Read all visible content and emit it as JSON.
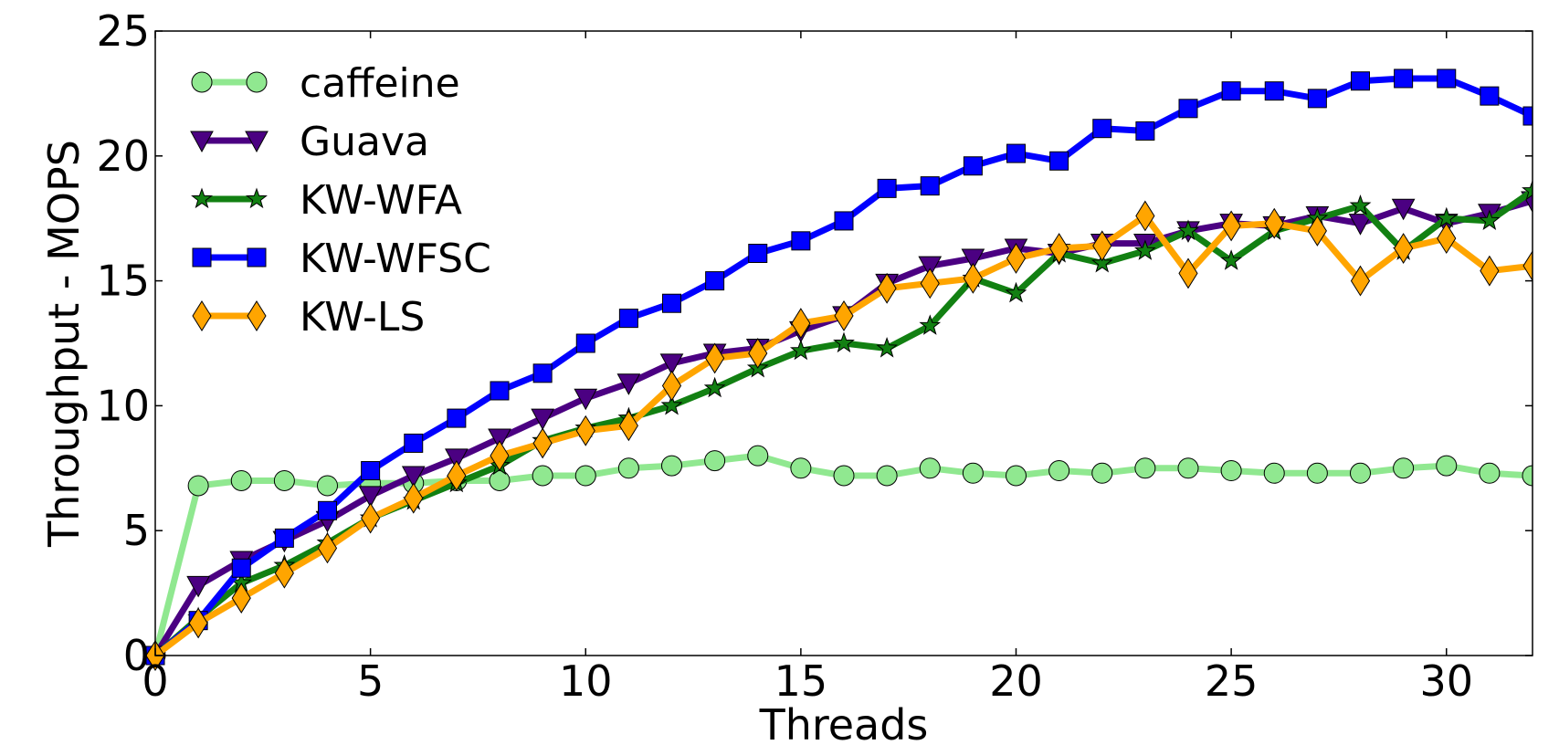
{
  "chart_data": {
    "type": "line",
    "title": "",
    "xlabel": "Threads",
    "ylabel": "Throughput - MOPS",
    "xlim": [
      0,
      32
    ],
    "ylim": [
      0,
      25
    ],
    "xticks": [
      0,
      5,
      10,
      15,
      20,
      25,
      30
    ],
    "yticks": [
      0,
      5,
      10,
      15,
      20,
      25
    ],
    "grid": false,
    "legend_position": "top-left",
    "x": [
      0,
      1,
      2,
      3,
      4,
      5,
      6,
      7,
      8,
      9,
      10,
      11,
      12,
      13,
      14,
      15,
      16,
      17,
      18,
      19,
      20,
      21,
      22,
      23,
      24,
      25,
      26,
      27,
      28,
      29,
      30,
      31,
      32
    ],
    "series": [
      {
        "name": "caffeine",
        "color": "#90e890",
        "marker": "circle",
        "values": [
          0,
          6.8,
          7.0,
          7.0,
          6.8,
          6.9,
          6.9,
          7.0,
          7.0,
          7.2,
          7.2,
          7.5,
          7.6,
          7.8,
          8.0,
          7.5,
          7.2,
          7.2,
          7.5,
          7.3,
          7.2,
          7.4,
          7.3,
          7.5,
          7.5,
          7.4,
          7.3,
          7.3,
          7.3,
          7.5,
          7.6,
          7.3,
          7.2
        ]
      },
      {
        "name": "Guava",
        "color": "#4b0082",
        "marker": "triangle-down",
        "values": [
          0,
          2.8,
          3.8,
          4.6,
          5.4,
          6.4,
          7.2,
          7.9,
          8.7,
          9.5,
          10.3,
          10.9,
          11.7,
          12.1,
          12.3,
          13.0,
          13.6,
          14.9,
          15.6,
          15.9,
          16.3,
          16.1,
          16.5,
          16.5,
          17.0,
          17.3,
          17.2,
          17.6,
          17.3,
          17.9,
          17.3,
          17.7,
          18.2
        ]
      },
      {
        "name": "KW-WFA",
        "color": "#128012",
        "marker": "star",
        "values": [
          0,
          1.5,
          2.9,
          3.6,
          4.5,
          5.5,
          6.2,
          6.9,
          7.6,
          8.6,
          9.1,
          9.5,
          10.0,
          10.7,
          11.5,
          12.2,
          12.5,
          12.3,
          13.2,
          15.1,
          14.5,
          16.1,
          15.7,
          16.2,
          17.0,
          15.8,
          17.0,
          17.5,
          18.0,
          16.2,
          17.5,
          17.4,
          18.6
        ]
      },
      {
        "name": "KW-WFSC",
        "color": "#0000ff",
        "marker": "square",
        "values": [
          0,
          1.4,
          3.5,
          4.7,
          5.8,
          7.4,
          8.5,
          9.5,
          10.6,
          11.3,
          12.5,
          13.5,
          14.1,
          15.0,
          16.1,
          16.6,
          17.4,
          18.7,
          18.8,
          19.6,
          20.1,
          19.8,
          21.1,
          21.0,
          21.9,
          22.6,
          22.6,
          22.3,
          23.0,
          23.1,
          23.1,
          22.4,
          21.6
        ]
      },
      {
        "name": "KW-LS",
        "color": "#ffa500",
        "marker": "diamond",
        "values": [
          0,
          1.3,
          2.3,
          3.3,
          4.3,
          5.5,
          6.3,
          7.2,
          8.0,
          8.5,
          9.0,
          9.2,
          10.8,
          11.9,
          12.1,
          13.3,
          13.6,
          14.7,
          14.9,
          15.1,
          15.9,
          16.3,
          16.4,
          17.6,
          15.3,
          17.2,
          17.3,
          17.0,
          15.0,
          16.3,
          16.7,
          15.4,
          15.6
        ]
      }
    ]
  }
}
